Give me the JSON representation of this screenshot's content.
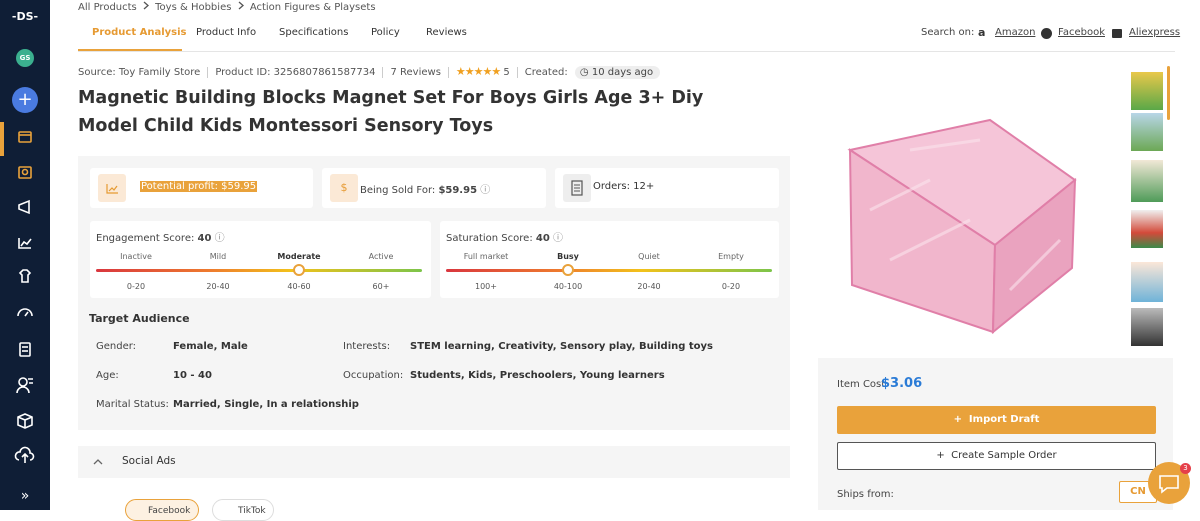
{
  "sidebar": {
    "logo": "-DS-",
    "avatar": "GS",
    "expand": "»"
  },
  "breadcrumb": [
    "All Products",
    "Toys & Hobbies",
    "Action Figures & Playsets"
  ],
  "tabs": [
    "Product Analysis",
    "Product Info",
    "Specifications",
    "Policy",
    "Reviews"
  ],
  "search": {
    "label": "Search on:",
    "links": [
      "Amazon",
      "Facebook",
      "Aliexpress"
    ]
  },
  "meta": {
    "source": "Source: Toy Family Store",
    "product_id": "Product ID: 3256807861587734",
    "reviews": "7 Reviews",
    "rating": 5,
    "created_label": "Created:",
    "created": "10 days ago"
  },
  "title": "Magnetic Building Blocks Magnet Set For Boys Girls Age 3+ Diy Model Child Kids Montessori Sensory Toys",
  "stats": {
    "profit": "Potential profit: $59.95",
    "sold_label": "Being Sold For:",
    "sold_value": "$59.95",
    "orders": "Orders: 12+"
  },
  "engagement": {
    "label": "Engagement Score:",
    "score": 40,
    "levels": [
      "Inactive",
      "Mild",
      "Moderate",
      "Active"
    ],
    "ranges": [
      "0-20",
      "20-40",
      "40-60",
      "60+"
    ]
  },
  "saturation": {
    "label": "Saturation Score:",
    "score": 40,
    "levels": [
      "Full market",
      "Busy",
      "Quiet",
      "Empty"
    ],
    "ranges": [
      "100+",
      "40-100",
      "20-40",
      "0-20"
    ]
  },
  "audience": {
    "title": "Target Audience",
    "fields": [
      {
        "label": "Gender:",
        "value": "Female, Male"
      },
      {
        "label": "Interests:",
        "value": "STEM learning, Creativity, Sensory play, Building toys"
      },
      {
        "label": "Age:",
        "value": "10 - 40"
      },
      {
        "label": "Occupation:",
        "value": "Students, Kids, Preschoolers, Young learners"
      },
      {
        "label": "Marital Status:",
        "value": "Married, Single, In a relationship"
      }
    ]
  },
  "social_ads": {
    "title": "Social Ads",
    "platforms": [
      "Facebook",
      "TikTok"
    ]
  },
  "purchase": {
    "cost_label": "Item Cost",
    "cost": "$3.06",
    "import": "Import Draft",
    "sample": "Create Sample Order",
    "ships_label": "Ships from:",
    "ships": "CN"
  },
  "chat_badge": 3
}
